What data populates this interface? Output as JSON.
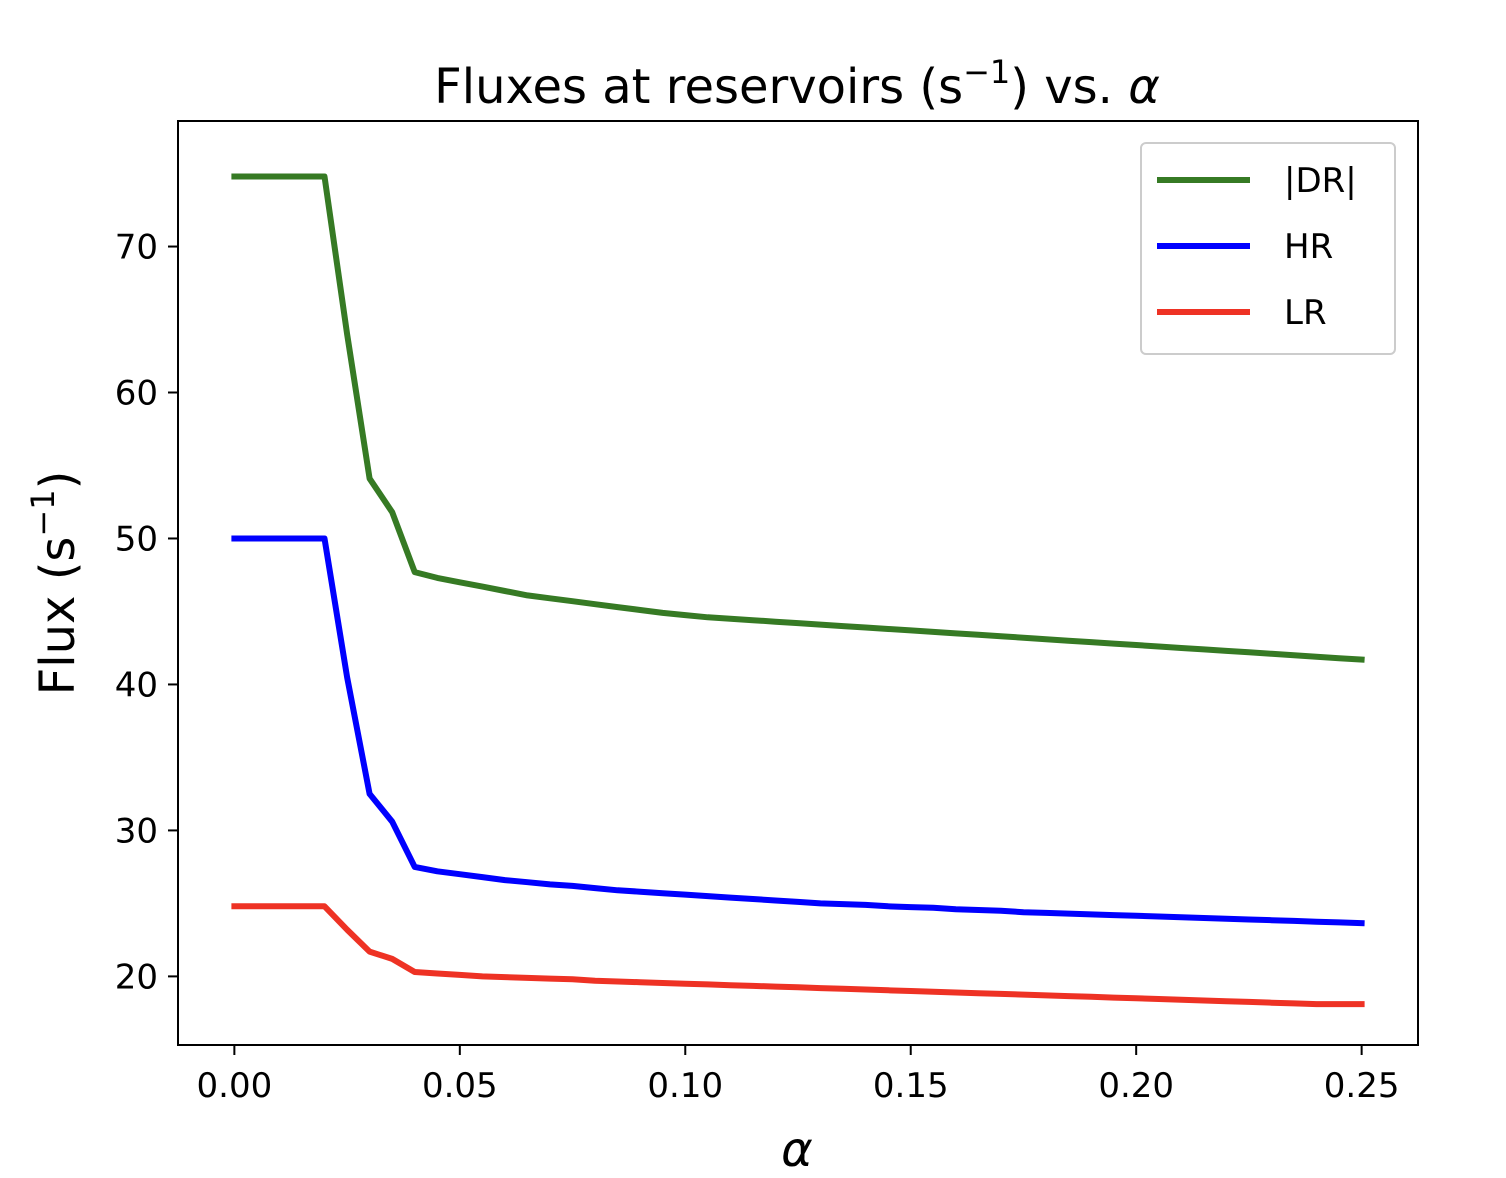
{
  "chart_data": {
    "type": "line",
    "title": {
      "prefix": "Fluxes at reservoirs (s",
      "superscript": "−1",
      "suffix": ") vs. ",
      "symbol": "α"
    },
    "xlabel": "α",
    "ylabel": {
      "prefix": "Flux (s",
      "superscript": "−1",
      "suffix": ")"
    },
    "xlim": [
      -0.0125,
      0.2625
    ],
    "ylim": [
      15.3,
      78.6
    ],
    "xticks": [
      0.0,
      0.05,
      0.1,
      0.15,
      0.2,
      0.25
    ],
    "xtick_labels": [
      "0.00",
      "0.05",
      "0.10",
      "0.15",
      "0.20",
      "0.25"
    ],
    "yticks": [
      20,
      30,
      40,
      50,
      60,
      70
    ],
    "ytick_labels": [
      "20",
      "30",
      "40",
      "50",
      "60",
      "70"
    ],
    "legend_position": "upper right",
    "grid": false,
    "x": [
      0.0,
      0.005,
      0.01,
      0.015,
      0.02,
      0.025,
      0.03,
      0.035,
      0.04,
      0.045,
      0.05,
      0.055,
      0.06,
      0.065,
      0.07,
      0.075,
      0.08,
      0.085,
      0.09,
      0.095,
      0.1,
      0.105,
      0.11,
      0.115,
      0.12,
      0.125,
      0.13,
      0.135,
      0.14,
      0.145,
      0.15,
      0.155,
      0.16,
      0.165,
      0.17,
      0.175,
      0.18,
      0.185,
      0.19,
      0.195,
      0.2,
      0.205,
      0.21,
      0.215,
      0.22,
      0.225,
      0.23,
      0.235,
      0.24,
      0.245,
      0.25
    ],
    "series": [
      {
        "name": "|DR|",
        "color": "#367a24",
        "values": [
          74.8,
          74.8,
          74.8,
          74.8,
          74.8,
          64.0,
          54.1,
          51.8,
          47.7,
          47.3,
          47.0,
          46.7,
          46.4,
          46.1,
          45.9,
          45.7,
          45.5,
          45.3,
          45.1,
          44.9,
          44.75,
          44.6,
          44.5,
          44.4,
          44.3,
          44.2,
          44.1,
          44.0,
          43.9,
          43.8,
          43.7,
          43.6,
          43.5,
          43.4,
          43.3,
          43.2,
          43.1,
          43.0,
          42.9,
          42.8,
          42.7,
          42.6,
          42.5,
          42.4,
          42.3,
          42.2,
          42.1,
          42.0,
          41.9,
          41.8,
          41.7
        ]
      },
      {
        "name": "HR",
        "color": "#0000ff",
        "values": [
          50.0,
          50.0,
          50.0,
          50.0,
          50.0,
          40.5,
          32.5,
          30.6,
          27.5,
          27.2,
          27.0,
          26.8,
          26.6,
          26.45,
          26.3,
          26.2,
          26.05,
          25.9,
          25.8,
          25.7,
          25.6,
          25.5,
          25.4,
          25.3,
          25.2,
          25.1,
          25.0,
          24.95,
          24.9,
          24.8,
          24.75,
          24.7,
          24.6,
          24.55,
          24.5,
          24.4,
          24.35,
          24.3,
          24.25,
          24.2,
          24.15,
          24.1,
          24.05,
          24.0,
          23.95,
          23.9,
          23.85,
          23.8,
          23.75,
          23.7,
          23.65
        ]
      },
      {
        "name": "LR",
        "color": "#ee3224",
        "values": [
          24.8,
          24.8,
          24.8,
          24.8,
          24.8,
          23.2,
          21.7,
          21.2,
          20.3,
          20.2,
          20.1,
          20.0,
          19.95,
          19.9,
          19.85,
          19.8,
          19.7,
          19.65,
          19.6,
          19.55,
          19.5,
          19.45,
          19.4,
          19.35,
          19.3,
          19.25,
          19.2,
          19.15,
          19.1,
          19.05,
          19.0,
          18.95,
          18.9,
          18.85,
          18.8,
          18.75,
          18.7,
          18.65,
          18.6,
          18.55,
          18.5,
          18.45,
          18.4,
          18.35,
          18.3,
          18.25,
          18.2,
          18.15,
          18.1,
          18.1,
          18.1
        ]
      }
    ]
  }
}
